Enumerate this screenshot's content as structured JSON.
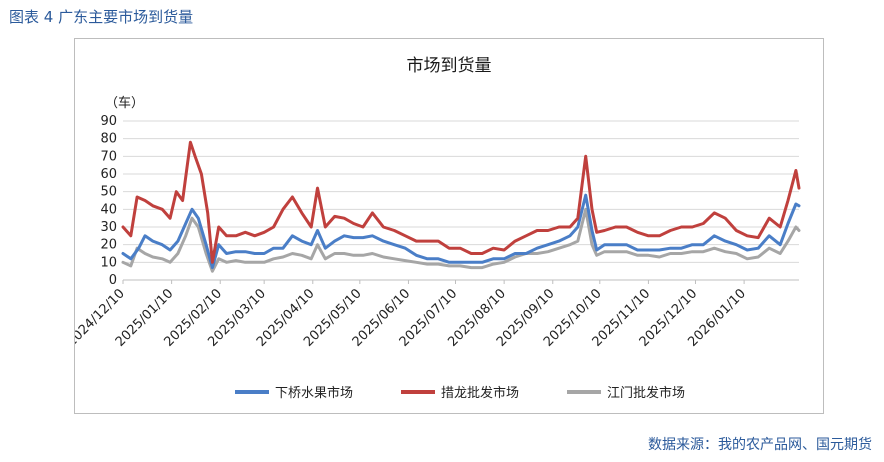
{
  "figure_label": "图表 4  广东主要市场到货量",
  "source": "数据来源：我的农产品网、国元期货",
  "colors": {
    "xiaqiao": "#4a7ec7",
    "cuolong": "#c0403d",
    "jiangmen": "#a6a6a6",
    "accent": "#2b5a9b"
  },
  "chart_data": {
    "type": "line",
    "title": "市场到货量",
    "ylabel": "（车）",
    "ylim": [
      0,
      90
    ],
    "yticks": [
      0,
      10,
      20,
      30,
      40,
      50,
      60,
      70,
      80,
      90
    ],
    "grid": true,
    "legend_position": "bottom",
    "xlim": [
      "2024-12-10",
      "2026-02-14"
    ],
    "xticks": [
      "2024/12/10",
      "2025/01/10",
      "2025/02/10",
      "2025/03/10",
      "2025/04/10",
      "2025/05/10",
      "2025/06/10",
      "2025/07/10",
      "2025/08/10",
      "2025/09/10",
      "2025/10/10",
      "2025/11/10",
      "2025/12/10",
      "2026/01/10"
    ],
    "series": [
      {
        "name": "下桥水果市场",
        "color_key": "xiaqiao",
        "points": [
          [
            "2024-12-10",
            15
          ],
          [
            "2024-12-15",
            12
          ],
          [
            "2024-12-20",
            18
          ],
          [
            "2024-12-24",
            25
          ],
          [
            "2024-12-29",
            22
          ],
          [
            "2025-01-04",
            20
          ],
          [
            "2025-01-09",
            17
          ],
          [
            "2025-01-14",
            22
          ],
          [
            "2025-01-19",
            32
          ],
          [
            "2025-01-23",
            40
          ],
          [
            "2025-01-27",
            35
          ],
          [
            "2025-02-01",
            20
          ],
          [
            "2025-02-05",
            7
          ],
          [
            "2025-02-09",
            20
          ],
          [
            "2025-02-14",
            15
          ],
          [
            "2025-02-20",
            16
          ],
          [
            "2025-02-26",
            16
          ],
          [
            "2025-03-04",
            15
          ],
          [
            "2025-03-10",
            15
          ],
          [
            "2025-03-16",
            18
          ],
          [
            "2025-03-22",
            18
          ],
          [
            "2025-03-28",
            25
          ],
          [
            "2025-04-03",
            22
          ],
          [
            "2025-04-09",
            20
          ],
          [
            "2025-04-13",
            28
          ],
          [
            "2025-04-18",
            18
          ],
          [
            "2025-04-24",
            22
          ],
          [
            "2025-04-30",
            25
          ],
          [
            "2025-05-06",
            24
          ],
          [
            "2025-05-12",
            24
          ],
          [
            "2025-05-18",
            25
          ],
          [
            "2025-05-25",
            22
          ],
          [
            "2025-06-01",
            20
          ],
          [
            "2025-06-08",
            18
          ],
          [
            "2025-06-15",
            14
          ],
          [
            "2025-06-22",
            12
          ],
          [
            "2025-06-29",
            12
          ],
          [
            "2025-07-06",
            10
          ],
          [
            "2025-07-13",
            10
          ],
          [
            "2025-07-20",
            10
          ],
          [
            "2025-07-27",
            10
          ],
          [
            "2025-08-03",
            12
          ],
          [
            "2025-08-10",
            12
          ],
          [
            "2025-08-17",
            15
          ],
          [
            "2025-08-24",
            15
          ],
          [
            "2025-08-31",
            18
          ],
          [
            "2025-09-07",
            20
          ],
          [
            "2025-09-14",
            22
          ],
          [
            "2025-09-21",
            25
          ],
          [
            "2025-09-26",
            30
          ],
          [
            "2025-10-01",
            48
          ],
          [
            "2025-10-05",
            28
          ],
          [
            "2025-10-08",
            17
          ],
          [
            "2025-10-13",
            20
          ],
          [
            "2025-10-20",
            20
          ],
          [
            "2025-10-27",
            20
          ],
          [
            "2025-11-03",
            17
          ],
          [
            "2025-11-10",
            17
          ],
          [
            "2025-11-17",
            17
          ],
          [
            "2025-11-24",
            18
          ],
          [
            "2025-12-01",
            18
          ],
          [
            "2025-12-08",
            20
          ],
          [
            "2025-12-15",
            20
          ],
          [
            "2025-12-22",
            25
          ],
          [
            "2025-12-29",
            22
          ],
          [
            "2026-01-05",
            20
          ],
          [
            "2026-01-12",
            17
          ],
          [
            "2026-01-19",
            18
          ],
          [
            "2026-01-26",
            25
          ],
          [
            "2026-02-02",
            20
          ],
          [
            "2026-02-07",
            32
          ],
          [
            "2026-02-12",
            43
          ],
          [
            "2026-02-14",
            42
          ]
        ]
      },
      {
        "name": "措龙批发市场",
        "color_key": "cuolong",
        "points": [
          [
            "2024-12-10",
            30
          ],
          [
            "2024-12-15",
            25
          ],
          [
            "2024-12-19",
            47
          ],
          [
            "2024-12-24",
            45
          ],
          [
            "2024-12-29",
            42
          ],
          [
            "2025-01-04",
            40
          ],
          [
            "2025-01-09",
            35
          ],
          [
            "2025-01-13",
            50
          ],
          [
            "2025-01-17",
            45
          ],
          [
            "2025-01-20",
            65
          ],
          [
            "2025-01-22",
            78
          ],
          [
            "2025-01-25",
            70
          ],
          [
            "2025-01-29",
            60
          ],
          [
            "2025-02-02",
            38
          ],
          [
            "2025-02-05",
            10
          ],
          [
            "2025-02-09",
            30
          ],
          [
            "2025-02-14",
            25
          ],
          [
            "2025-02-20",
            25
          ],
          [
            "2025-02-26",
            27
          ],
          [
            "2025-03-04",
            25
          ],
          [
            "2025-03-10",
            27
          ],
          [
            "2025-03-16",
            30
          ],
          [
            "2025-03-22",
            40
          ],
          [
            "2025-03-28",
            47
          ],
          [
            "2025-04-03",
            38
          ],
          [
            "2025-04-09",
            30
          ],
          [
            "2025-04-13",
            52
          ],
          [
            "2025-04-18",
            30
          ],
          [
            "2025-04-24",
            36
          ],
          [
            "2025-04-30",
            35
          ],
          [
            "2025-05-06",
            32
          ],
          [
            "2025-05-12",
            30
          ],
          [
            "2025-05-18",
            38
          ],
          [
            "2025-05-25",
            30
          ],
          [
            "2025-06-01",
            28
          ],
          [
            "2025-06-08",
            25
          ],
          [
            "2025-06-15",
            22
          ],
          [
            "2025-06-22",
            22
          ],
          [
            "2025-06-29",
            22
          ],
          [
            "2025-07-06",
            18
          ],
          [
            "2025-07-13",
            18
          ],
          [
            "2025-07-20",
            15
          ],
          [
            "2025-07-27",
            15
          ],
          [
            "2025-08-03",
            18
          ],
          [
            "2025-08-10",
            17
          ],
          [
            "2025-08-17",
            22
          ],
          [
            "2025-08-24",
            25
          ],
          [
            "2025-08-31",
            28
          ],
          [
            "2025-09-07",
            28
          ],
          [
            "2025-09-14",
            30
          ],
          [
            "2025-09-21",
            30
          ],
          [
            "2025-09-26",
            35
          ],
          [
            "2025-10-01",
            70
          ],
          [
            "2025-10-05",
            40
          ],
          [
            "2025-10-08",
            27
          ],
          [
            "2025-10-13",
            28
          ],
          [
            "2025-10-20",
            30
          ],
          [
            "2025-10-27",
            30
          ],
          [
            "2025-11-03",
            27
          ],
          [
            "2025-11-10",
            25
          ],
          [
            "2025-11-17",
            25
          ],
          [
            "2025-11-24",
            28
          ],
          [
            "2025-12-01",
            30
          ],
          [
            "2025-12-08",
            30
          ],
          [
            "2025-12-15",
            32
          ],
          [
            "2025-12-22",
            38
          ],
          [
            "2025-12-29",
            35
          ],
          [
            "2026-01-05",
            28
          ],
          [
            "2026-01-12",
            25
          ],
          [
            "2026-01-19",
            24
          ],
          [
            "2026-01-26",
            35
          ],
          [
            "2026-02-02",
            30
          ],
          [
            "2026-02-07",
            45
          ],
          [
            "2026-02-12",
            62
          ],
          [
            "2026-02-14",
            52
          ]
        ]
      },
      {
        "name": "江门批发市场",
        "color_key": "jiangmen",
        "points": [
          [
            "2024-12-10",
            10
          ],
          [
            "2024-12-15",
            8
          ],
          [
            "2024-12-19",
            18
          ],
          [
            "2024-12-24",
            15
          ],
          [
            "2024-12-29",
            13
          ],
          [
            "2025-01-04",
            12
          ],
          [
            "2025-01-09",
            10
          ],
          [
            "2025-01-14",
            15
          ],
          [
            "2025-01-19",
            25
          ],
          [
            "2025-01-23",
            35
          ],
          [
            "2025-01-27",
            30
          ],
          [
            "2025-02-01",
            15
          ],
          [
            "2025-02-05",
            5
          ],
          [
            "2025-02-09",
            12
          ],
          [
            "2025-02-14",
            10
          ],
          [
            "2025-02-20",
            11
          ],
          [
            "2025-02-26",
            10
          ],
          [
            "2025-03-04",
            10
          ],
          [
            "2025-03-10",
            10
          ],
          [
            "2025-03-16",
            12
          ],
          [
            "2025-03-22",
            13
          ],
          [
            "2025-03-28",
            15
          ],
          [
            "2025-04-03",
            14
          ],
          [
            "2025-04-09",
            12
          ],
          [
            "2025-04-13",
            20
          ],
          [
            "2025-04-18",
            12
          ],
          [
            "2025-04-24",
            15
          ],
          [
            "2025-04-30",
            15
          ],
          [
            "2025-05-06",
            14
          ],
          [
            "2025-05-12",
            14
          ],
          [
            "2025-05-18",
            15
          ],
          [
            "2025-05-25",
            13
          ],
          [
            "2025-06-01",
            12
          ],
          [
            "2025-06-08",
            11
          ],
          [
            "2025-06-15",
            10
          ],
          [
            "2025-06-22",
            9
          ],
          [
            "2025-06-29",
            9
          ],
          [
            "2025-07-06",
            8
          ],
          [
            "2025-07-13",
            8
          ],
          [
            "2025-07-20",
            7
          ],
          [
            "2025-07-27",
            7
          ],
          [
            "2025-08-03",
            9
          ],
          [
            "2025-08-10",
            10
          ],
          [
            "2025-08-17",
            13
          ],
          [
            "2025-08-24",
            15
          ],
          [
            "2025-08-31",
            15
          ],
          [
            "2025-09-07",
            16
          ],
          [
            "2025-09-14",
            18
          ],
          [
            "2025-09-21",
            20
          ],
          [
            "2025-09-26",
            22
          ],
          [
            "2025-10-01",
            40
          ],
          [
            "2025-10-05",
            20
          ],
          [
            "2025-10-08",
            14
          ],
          [
            "2025-10-13",
            16
          ],
          [
            "2025-10-20",
            16
          ],
          [
            "2025-10-27",
            16
          ],
          [
            "2025-11-03",
            14
          ],
          [
            "2025-11-10",
            14
          ],
          [
            "2025-11-17",
            13
          ],
          [
            "2025-11-24",
            15
          ],
          [
            "2025-12-01",
            15
          ],
          [
            "2025-12-08",
            16
          ],
          [
            "2025-12-15",
            16
          ],
          [
            "2025-12-22",
            18
          ],
          [
            "2025-12-29",
            16
          ],
          [
            "2026-01-05",
            15
          ],
          [
            "2026-01-12",
            12
          ],
          [
            "2026-01-19",
            13
          ],
          [
            "2026-01-26",
            18
          ],
          [
            "2026-02-02",
            15
          ],
          [
            "2026-02-07",
            22
          ],
          [
            "2026-02-12",
            30
          ],
          [
            "2026-02-14",
            28
          ]
        ]
      }
    ]
  }
}
